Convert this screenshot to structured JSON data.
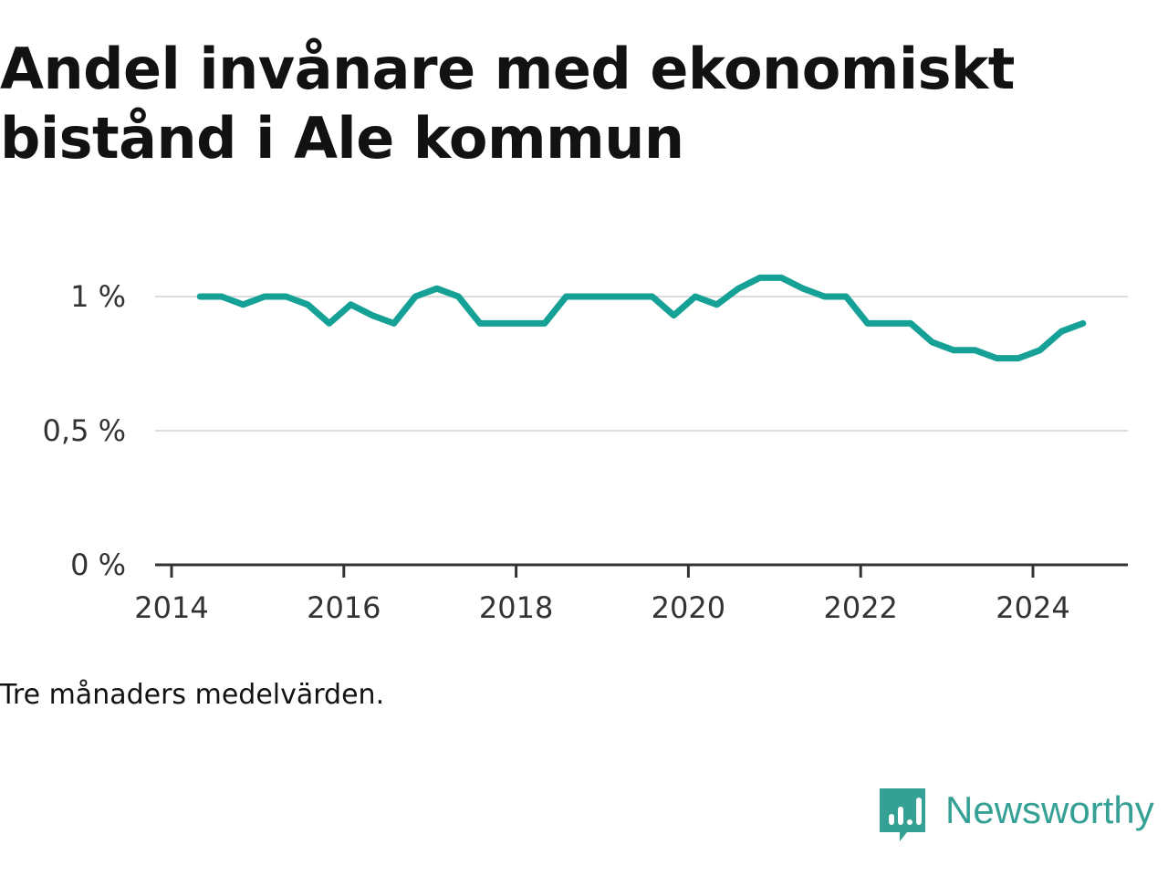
{
  "title": "Andel invånare med ekonomiskt bistånd i Ale kommun",
  "note": "Tre månaders medelvärden.",
  "brand": {
    "name": "Newsworthy",
    "icon": "newsworthy-chart-bubble-icon",
    "color": "#35a195"
  },
  "colors": {
    "line": "#16a196",
    "grid": "#dddddd",
    "axis": "#333333"
  },
  "chart_data": {
    "type": "line",
    "title": "Andel invånare med ekonomiskt bistånd i Ale kommun",
    "xlabel": "",
    "ylabel": "",
    "ylim": [
      0,
      1.1
    ],
    "xlim": [
      2013.8,
      2025.1
    ],
    "grid": true,
    "y_ticks": [
      {
        "value": 0,
        "label": "0 %"
      },
      {
        "value": 0.5,
        "label": "0,5 %"
      },
      {
        "value": 1,
        "label": "1 %"
      }
    ],
    "x_ticks": [
      {
        "value": 2014,
        "label": "2014"
      },
      {
        "value": 2016,
        "label": "2016"
      },
      {
        "value": 2018,
        "label": "2018"
      },
      {
        "value": 2020,
        "label": "2020"
      },
      {
        "value": 2022,
        "label": "2022"
      },
      {
        "value": 2024,
        "label": "2024"
      }
    ],
    "series": [
      {
        "x": [
          2014.33,
          2014.58,
          2014.83,
          2015.08,
          2015.33,
          2015.58,
          2015.83,
          2016.08,
          2016.33,
          2016.58,
          2016.83,
          2017.08,
          2017.33,
          2017.58,
          2017.83,
          2018.08,
          2018.33,
          2018.58,
          2018.83,
          2019.08,
          2019.33,
          2019.58,
          2019.83,
          2020.08,
          2020.33,
          2020.58,
          2020.83,
          2021.08,
          2021.33,
          2021.58,
          2021.83,
          2022.08,
          2022.33,
          2022.58,
          2022.83,
          2023.08,
          2023.33,
          2023.58,
          2023.83,
          2024.08,
          2024.33,
          2024.58
        ],
        "values": [
          1.0,
          1.0,
          0.97,
          1.0,
          1.0,
          0.97,
          0.9,
          0.97,
          0.93,
          0.9,
          1.0,
          1.03,
          1.0,
          0.9,
          0.9,
          0.9,
          0.9,
          1.0,
          1.0,
          1.0,
          1.0,
          1.0,
          0.93,
          1.0,
          0.97,
          1.03,
          1.07,
          1.07,
          1.03,
          1.0,
          1.0,
          0.9,
          0.9,
          0.9,
          0.83,
          0.8,
          0.8,
          0.77,
          0.77,
          0.8,
          0.87,
          0.9
        ]
      }
    ]
  }
}
